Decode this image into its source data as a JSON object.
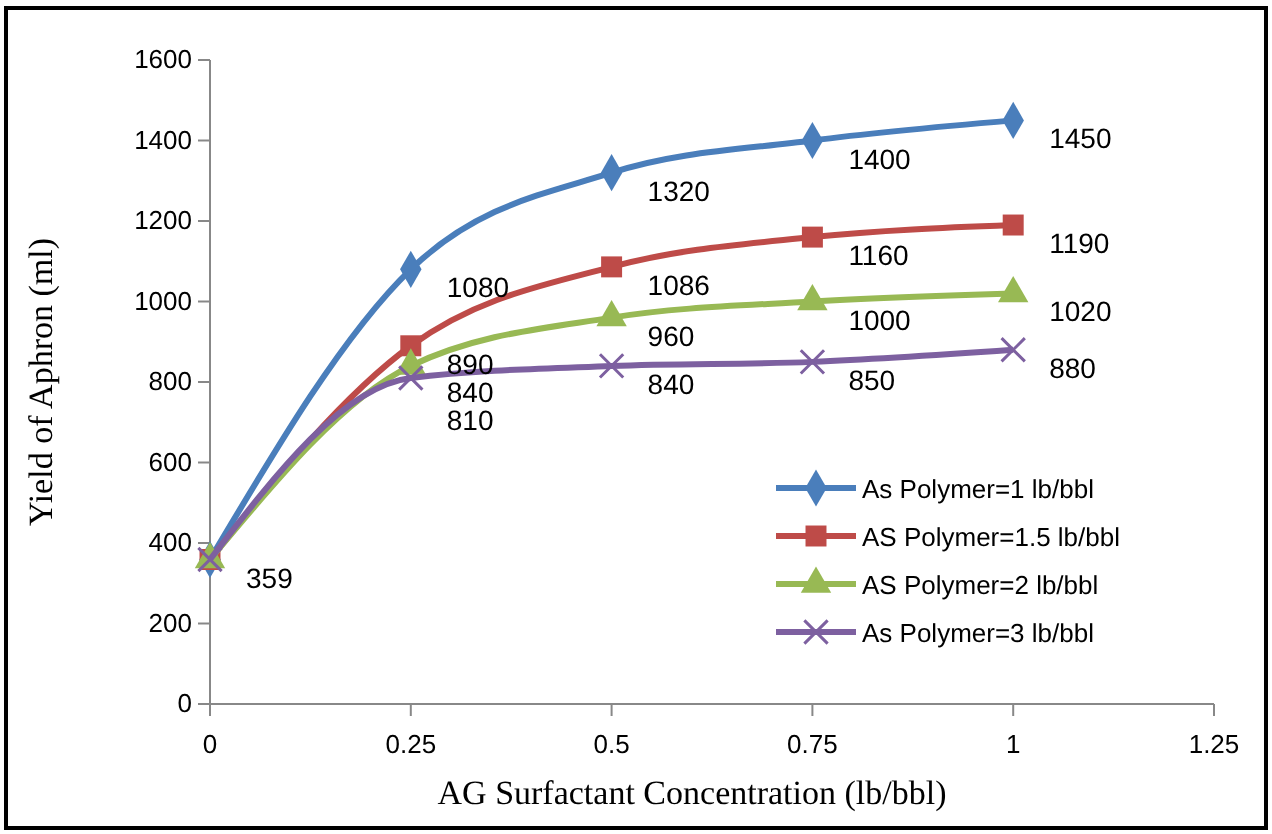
{
  "chart_data": {
    "type": "line",
    "xlabel": "AG Surfactant Concentration (lb/bbl)",
    "ylabel": "Yield of Aphron (ml)",
    "x": [
      0,
      0.25,
      0.5,
      0.75,
      1
    ],
    "series": [
      {
        "name": "As Polymer=1 lb/bbl",
        "color": "#4a7ebb",
        "marker": "diamond",
        "values": [
          359,
          1080,
          1320,
          1400,
          1450
        ],
        "value_labels": [
          null,
          "1080",
          "1320",
          "1400",
          "1450"
        ]
      },
      {
        "name": "AS Polymer=1.5 lb/bbl",
        "color": "#be4b48",
        "marker": "square",
        "values": [
          359,
          890,
          1086,
          1160,
          1190
        ],
        "value_labels": [
          null,
          "890",
          "1086",
          "1160",
          "1190"
        ]
      },
      {
        "name": "AS Polymer=2 lb/bbl",
        "color": "#98b954",
        "marker": "triangle",
        "values": [
          359,
          840,
          960,
          1000,
          1020
        ],
        "value_labels": [
          "359",
          "840",
          "960",
          "1000",
          "1020"
        ]
      },
      {
        "name": "As Polymer=3 lb/bbl",
        "color": "#7d60a0",
        "marker": "cross",
        "values": [
          359,
          810,
          840,
          850,
          880
        ],
        "value_labels": [
          null,
          "810",
          "840",
          "850",
          "880"
        ]
      }
    ],
    "xlim": [
      0,
      1.25
    ],
    "xticks": [
      0,
      0.25,
      0.5,
      0.75,
      1,
      1.25
    ],
    "ylim": [
      0,
      1600
    ],
    "yticks": [
      0,
      200,
      400,
      600,
      800,
      1000,
      1200,
      1400,
      1600
    ],
    "legend": "right",
    "grid": false,
    "line_style": "solid"
  }
}
